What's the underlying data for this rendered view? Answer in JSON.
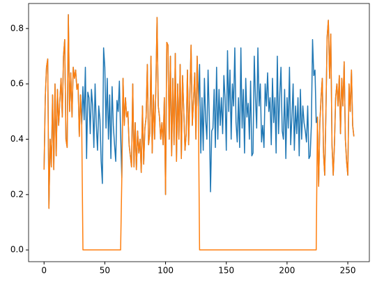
{
  "chart_data": {
    "type": "line",
    "x": [
      0,
      1,
      2,
      3,
      4,
      5,
      6,
      7,
      8,
      9,
      10,
      11,
      12,
      13,
      14,
      15,
      16,
      17,
      18,
      19,
      20,
      21,
      22,
      23,
      24,
      25,
      26,
      27,
      28,
      29,
      30,
      31,
      32,
      33,
      34,
      35,
      36,
      37,
      38,
      39,
      40,
      41,
      42,
      43,
      44,
      45,
      46,
      47,
      48,
      49,
      50,
      51,
      52,
      53,
      54,
      55,
      56,
      57,
      58,
      59,
      60,
      61,
      62,
      63,
      64,
      65,
      66,
      67,
      68,
      69,
      70,
      71,
      72,
      73,
      74,
      75,
      76,
      77,
      78,
      79,
      80,
      81,
      82,
      83,
      84,
      85,
      86,
      87,
      88,
      89,
      90,
      91,
      92,
      93,
      94,
      95,
      96,
      97,
      98,
      99,
      100,
      101,
      102,
      103,
      104,
      105,
      106,
      107,
      108,
      109,
      110,
      111,
      112,
      113,
      114,
      115,
      116,
      117,
      118,
      119,
      120,
      121,
      122,
      123,
      124,
      125,
      126,
      127,
      128,
      129,
      130,
      131,
      132,
      133,
      134,
      135,
      136,
      137,
      138,
      139,
      140,
      141,
      142,
      143,
      144,
      145,
      146,
      147,
      148,
      149,
      150,
      151,
      152,
      153,
      154,
      155,
      156,
      157,
      158,
      159,
      160,
      161,
      162,
      163,
      164,
      165,
      166,
      167,
      168,
      169,
      170,
      171,
      172,
      173,
      174,
      175,
      176,
      177,
      178,
      179,
      180,
      181,
      182,
      183,
      184,
      185,
      186,
      187,
      188,
      189,
      190,
      191,
      192,
      193,
      194,
      195,
      196,
      197,
      198,
      199,
      200,
      201,
      202,
      203,
      204,
      205,
      206,
      207,
      208,
      209,
      210,
      211,
      212,
      213,
      214,
      215,
      216,
      217,
      218,
      219,
      220,
      221,
      222,
      223,
      224,
      225,
      226,
      227,
      228,
      229,
      230,
      231,
      232,
      233,
      234,
      235,
      236,
      237,
      238,
      239,
      240,
      241,
      242,
      243,
      244,
      245,
      246,
      247,
      248,
      249,
      250,
      251,
      252,
      253,
      254,
      255
    ],
    "series": [
      {
        "color": "#1f77b4",
        "values": [
          0.29,
          0.55,
          0.66,
          0.69,
          0.15,
          0.4,
          0.3,
          0.56,
          0.29,
          0.6,
          0.34,
          0.58,
          0.45,
          0.54,
          0.62,
          0.48,
          0.7,
          0.76,
          0.4,
          0.37,
          0.85,
          0.5,
          0.64,
          0.48,
          0.66,
          0.62,
          0.65,
          0.58,
          0.6,
          0.41,
          0.56,
          0.45,
          0.59,
          0.47,
          0.66,
          0.33,
          0.57,
          0.55,
          0.42,
          0.58,
          0.52,
          0.37,
          0.6,
          0.45,
          0.36,
          0.52,
          0.47,
          0.32,
          0.24,
          0.73,
          0.66,
          0.44,
          0.62,
          0.4,
          0.56,
          0.33,
          0.59,
          0.45,
          0.38,
          0.32,
          0.54,
          0.5,
          0.61,
          0.42,
          0.26,
          0.62,
          0.45,
          0.55,
          0.48,
          0.5,
          0.38,
          0.34,
          0.3,
          0.6,
          0.3,
          0.46,
          0.29,
          0.43,
          0.35,
          0.4,
          0.28,
          0.52,
          0.31,
          0.44,
          0.48,
          0.67,
          0.38,
          0.42,
          0.7,
          0.35,
          0.56,
          0.4,
          0.58,
          0.84,
          0.52,
          0.48,
          0.4,
          0.46,
          0.38,
          0.55,
          0.2,
          0.75,
          0.74,
          0.4,
          0.7,
          0.34,
          0.62,
          0.38,
          0.71,
          0.32,
          0.6,
          0.4,
          0.67,
          0.33,
          0.63,
          0.5,
          0.36,
          0.42,
          0.65,
          0.38,
          0.56,
          0.74,
          0.45,
          0.54,
          0.64,
          0.4,
          0.7,
          0.52,
          0.67,
          0.35,
          0.55,
          0.36,
          0.62,
          0.47,
          0.4,
          0.65,
          0.48,
          0.21,
          0.43,
          0.44,
          0.58,
          0.37,
          0.66,
          0.4,
          0.58,
          0.45,
          0.55,
          0.42,
          0.63,
          0.55,
          0.36,
          0.72,
          0.5,
          0.65,
          0.4,
          0.6,
          0.52,
          0.73,
          0.46,
          0.39,
          0.55,
          0.37,
          0.73,
          0.44,
          0.58,
          0.35,
          0.62,
          0.48,
          0.53,
          0.4,
          0.61,
          0.34,
          0.35,
          0.7,
          0.55,
          0.44,
          0.73,
          0.52,
          0.6,
          0.39,
          0.45,
          0.37,
          0.6,
          0.52,
          0.64,
          0.5,
          0.55,
          0.38,
          0.62,
          0.46,
          0.55,
          0.35,
          0.7,
          0.42,
          0.56,
          0.66,
          0.43,
          0.4,
          0.58,
          0.33,
          0.55,
          0.44,
          0.66,
          0.38,
          0.48,
          0.6,
          0.36,
          0.52,
          0.42,
          0.55,
          0.34,
          0.58,
          0.4,
          0.52,
          0.46,
          0.43,
          0.39,
          0.52,
          0.33,
          0.34,
          0.45,
          0.76,
          0.63,
          0.65,
          0.46,
          0.48,
          0.23,
          0.46,
          0.55,
          0.62,
          0.35,
          0.27,
          0.5,
          0.77,
          0.83,
          0.62,
          0.78,
          0.38,
          0.27,
          0.38,
          0.55,
          0.6,
          0.52,
          0.63,
          0.42,
          0.62,
          0.52,
          0.68,
          0.4,
          0.32,
          0.27,
          0.6,
          0.5,
          0.65,
          0.45,
          0.41
        ]
      },
      {
        "color": "#ff7f0e",
        "values": [
          0.29,
          0.55,
          0.66,
          0.69,
          0.15,
          0.4,
          0.3,
          0.56,
          0.29,
          0.6,
          0.34,
          0.58,
          0.45,
          0.54,
          0.62,
          0.48,
          0.7,
          0.76,
          0.4,
          0.37,
          0.85,
          0.5,
          0.64,
          0.48,
          0.66,
          0.62,
          0.65,
          0.58,
          0.6,
          0.41,
          0.56,
          0.45,
          0,
          0,
          0,
          0,
          0,
          0,
          0,
          0,
          0,
          0,
          0,
          0,
          0,
          0,
          0,
          0,
          0,
          0,
          0,
          0,
          0,
          0,
          0,
          0,
          0,
          0,
          0,
          0,
          0,
          0,
          0,
          0,
          0.26,
          0.62,
          0.45,
          0.55,
          0.48,
          0.5,
          0.38,
          0.34,
          0.3,
          0.6,
          0.3,
          0.46,
          0.29,
          0.43,
          0.35,
          0.4,
          0.28,
          0.52,
          0.31,
          0.44,
          0.48,
          0.67,
          0.38,
          0.42,
          0.7,
          0.35,
          0.56,
          0.4,
          0.58,
          0.84,
          0.52,
          0.48,
          0.4,
          0.46,
          0.38,
          0.55,
          0.2,
          0.75,
          0.74,
          0.4,
          0.7,
          0.34,
          0.62,
          0.38,
          0.71,
          0.32,
          0.6,
          0.4,
          0.67,
          0.33,
          0.63,
          0.5,
          0.36,
          0.42,
          0.65,
          0.38,
          0.56,
          0.74,
          0.45,
          0.54,
          0.64,
          0.4,
          0.7,
          0.52,
          0,
          0,
          0,
          0,
          0,
          0,
          0,
          0,
          0,
          0,
          0,
          0,
          0,
          0,
          0,
          0,
          0,
          0,
          0,
          0,
          0,
          0,
          0,
          0,
          0,
          0,
          0,
          0,
          0,
          0,
          0,
          0,
          0,
          0,
          0,
          0,
          0,
          0,
          0,
          0,
          0,
          0,
          0,
          0,
          0,
          0,
          0,
          0,
          0,
          0,
          0,
          0,
          0,
          0,
          0,
          0,
          0,
          0,
          0,
          0,
          0,
          0,
          0,
          0,
          0,
          0,
          0,
          0,
          0,
          0,
          0,
          0,
          0,
          0,
          0,
          0,
          0,
          0,
          0,
          0,
          0,
          0,
          0,
          0,
          0,
          0,
          0,
          0,
          0,
          0,
          0,
          0,
          0,
          0,
          0,
          0,
          0,
          0.48,
          0.23,
          0.46,
          0.55,
          0.62,
          0.35,
          0.27,
          0.5,
          0.77,
          0.83,
          0.62,
          0.78,
          0.38,
          0.27,
          0.38,
          0.55,
          0.6,
          0.52,
          0.63,
          0.42,
          0.62,
          0.52,
          0.68,
          0.4,
          0.32,
          0.27,
          0.6,
          0.5,
          0.65,
          0.45,
          0.41
        ]
      }
    ],
    "xlim": [
      -12.75,
      267.75
    ],
    "ylim": [
      -0.0424,
      0.8904
    ],
    "xticks": [
      0,
      50,
      100,
      150,
      200,
      250
    ],
    "yticks": [
      {
        "value": 0,
        "label": "0.0"
      },
      0.2,
      0.4,
      0.6,
      0.8
    ]
  }
}
